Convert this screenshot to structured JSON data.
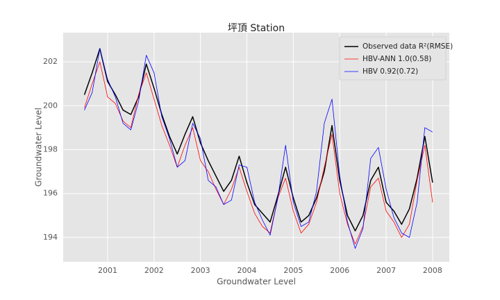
{
  "chart_data": {
    "type": "line",
    "title": "坪頂 Station",
    "x_label": "Groundwater Level",
    "y_label": "Groundwater Level",
    "x": [
      2000.5,
      2000.667,
      2000.833,
      2001,
      2001.167,
      2001.333,
      2001.5,
      2001.667,
      2001.833,
      2002,
      2002.167,
      2002.333,
      2002.5,
      2002.667,
      2002.833,
      2003,
      2003.167,
      2003.333,
      2003.5,
      2003.667,
      2003.833,
      2004,
      2004.167,
      2004.333,
      2004.5,
      2004.667,
      2004.833,
      2005,
      2005.167,
      2005.333,
      2005.5,
      2005.667,
      2005.833,
      2006,
      2006.167,
      2006.333,
      2006.5,
      2006.667,
      2006.833,
      2007,
      2007.167,
      2007.333,
      2007.5,
      2007.667,
      2007.833,
      2008
    ],
    "series": [
      {
        "name": "Observed data R²(RMSE)",
        "color": "#000000",
        "width": 1.5,
        "values": [
          200.5,
          201.5,
          202.6,
          201.1,
          200.5,
          199.8,
          199.6,
          200.4,
          201.9,
          200.8,
          199.6,
          198.6,
          197.8,
          198.7,
          199.5,
          198.3,
          197.5,
          196.8,
          196.1,
          196.6,
          197.7,
          196.5,
          195.5,
          195.1,
          194.7,
          195.9,
          197.2,
          195.8,
          194.7,
          195.0,
          195.8,
          197.0,
          199.1,
          196.6,
          195.0,
          194.3,
          195.0,
          196.6,
          197.2,
          195.6,
          195.2,
          194.6,
          195.3,
          196.7,
          198.6,
          196.5
        ]
      },
      {
        "name": "HBV-ANN 1.0(0.58)",
        "color": "#ff0000",
        "width": 0.8,
        "values": [
          199.9,
          201.0,
          202.0,
          200.4,
          200.1,
          199.3,
          199.0,
          200.5,
          201.5,
          200.3,
          199.1,
          198.2,
          197.2,
          198.2,
          199.0,
          197.5,
          197.0,
          196.2,
          195.5,
          196.2,
          197.2,
          196.1,
          195.1,
          194.5,
          194.2,
          195.8,
          196.7,
          195.2,
          194.2,
          194.6,
          195.6,
          197.2,
          198.7,
          196.0,
          194.6,
          193.7,
          194.5,
          196.3,
          196.7,
          195.2,
          194.7,
          194.0,
          194.6,
          196.6,
          198.2,
          195.6
        ]
      },
      {
        "name": "HBV 0.92(0.72)",
        "color": "#0000ff",
        "width": 0.8,
        "values": [
          199.8,
          200.6,
          202.6,
          201.2,
          200.4,
          199.2,
          198.9,
          200.2,
          202.3,
          201.5,
          199.5,
          198.5,
          197.2,
          197.5,
          199.2,
          198.5,
          196.6,
          196.3,
          195.5,
          195.7,
          197.3,
          197.2,
          195.6,
          194.8,
          194.1,
          195.8,
          198.2,
          195.6,
          194.5,
          194.7,
          196.1,
          199.2,
          200.3,
          196.8,
          194.7,
          193.5,
          194.4,
          197.6,
          198.1,
          196.2,
          194.9,
          194.2,
          194.0,
          195.6,
          199.0,
          198.8
        ]
      }
    ],
    "xlim": [
      2000.043,
      2008.36
    ],
    "ylim": [
      192.89,
      203.33
    ],
    "xticks": [
      2001,
      2002,
      2003,
      2004,
      2005,
      2006,
      2007,
      2008
    ],
    "yticks": [
      194,
      196,
      198,
      200,
      202
    ],
    "grid": true,
    "legend": "upper right"
  }
}
